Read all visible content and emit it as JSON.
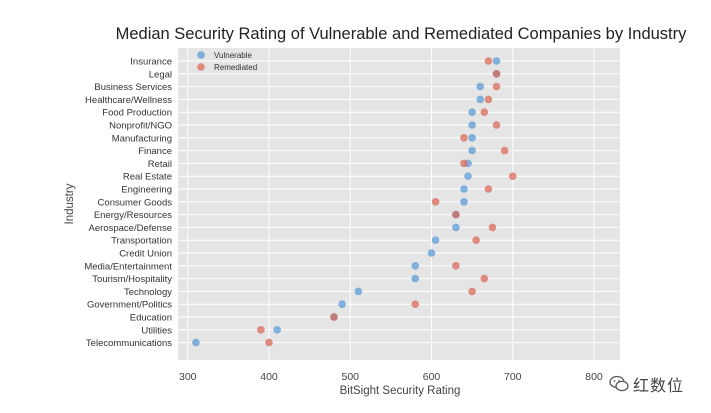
{
  "chart_data": {
    "type": "scatter",
    "title": "Median Security Rating of Vulnerable and Remediated Companies by Industry",
    "xlabel": "BitSight Security Rating",
    "ylabel": "Industry",
    "xlim": [
      288,
      832
    ],
    "xticks": [
      300,
      400,
      500,
      600,
      700,
      800
    ],
    "grid": true,
    "legend_position": "top-left",
    "categories": [
      "Insurance",
      "Legal",
      "Business Services",
      "Healthcare/Wellness",
      "Food Production",
      "Nonprofit/NGO",
      "Manufacturing",
      "Finance",
      "Retail",
      "Real Estate",
      "Engineering",
      "Consumer Goods",
      "Energy/Resources",
      "Aerospace/Defense",
      "Transportation",
      "Credit Union",
      "Media/Entertainment",
      "Tourism/Hospitality",
      "Technology",
      "Government/Politics",
      "Education",
      "Utilities",
      "Telecommunications"
    ],
    "series": [
      {
        "name": "Vulnerable",
        "color": "#5b9bd5",
        "values": [
          680,
          680,
          660,
          660,
          650,
          650,
          650,
          650,
          645,
          645,
          640,
          640,
          630,
          630,
          605,
          600,
          580,
          580,
          510,
          490,
          480,
          410,
          310
        ]
      },
      {
        "name": "Remediated",
        "color": "#d9695a",
        "values": [
          670,
          680,
          680,
          670,
          665,
          680,
          640,
          690,
          640,
          700,
          670,
          605,
          630,
          675,
          655,
          null,
          630,
          665,
          650,
          580,
          480,
          390,
          400
        ]
      }
    ]
  },
  "watermark": {
    "text": "红数位",
    "icon": "wechat-icon"
  }
}
